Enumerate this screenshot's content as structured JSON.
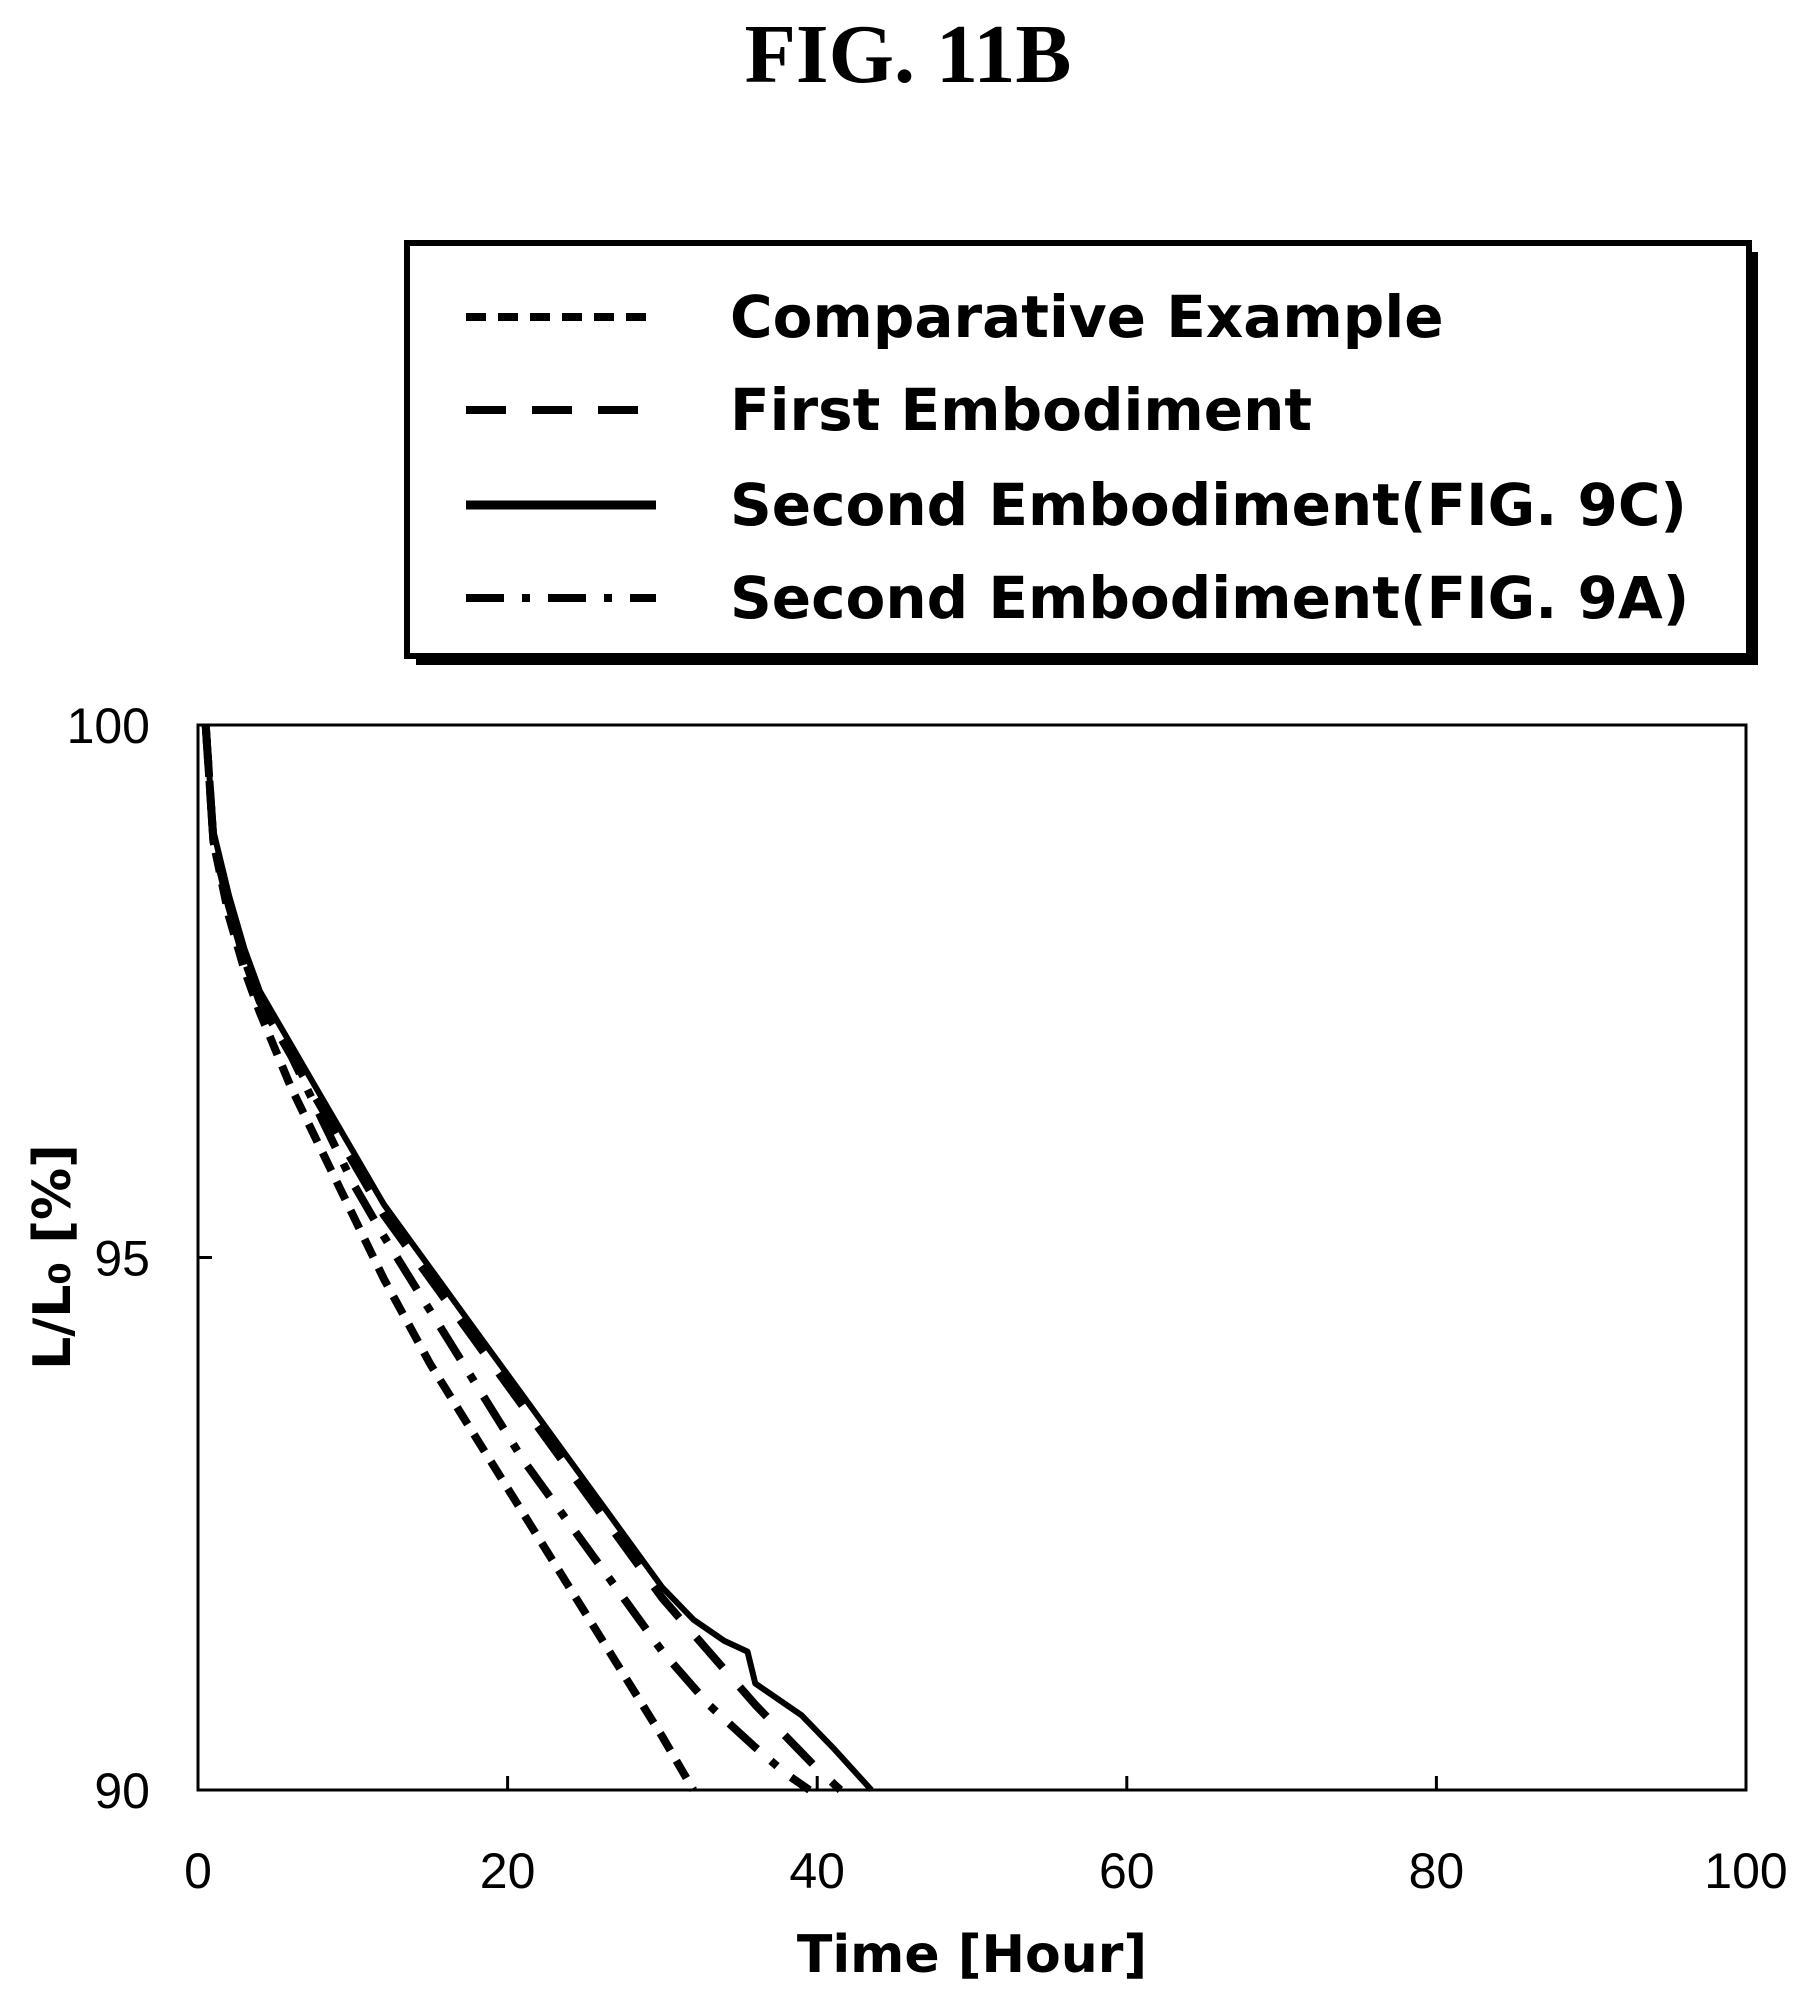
{
  "figure_title": "FIG. 11B",
  "chart_data": {
    "type": "line",
    "title": "FIG. 11B",
    "xlabel": "Time [Hour]",
    "ylabel": "L/L₀ [%]",
    "xlim": [
      0,
      100
    ],
    "ylim": [
      90,
      100
    ],
    "xticks": [
      "0",
      "20",
      "40",
      "60",
      "80",
      "100"
    ],
    "yticks": [
      "90",
      "95",
      "100"
    ],
    "grid": false,
    "legend_position": "top-right, above plot",
    "series": [
      {
        "name": "Comparative Example",
        "dash": "short-dash",
        "x": [
          0.5,
          1,
          2,
          3,
          4,
          6,
          8,
          10,
          12,
          15,
          18,
          21,
          24,
          27,
          30,
          32
        ],
        "y": [
          100,
          98.9,
          98.2,
          97.7,
          97.3,
          96.6,
          96.0,
          95.4,
          94.8,
          94.0,
          93.3,
          92.6,
          91.9,
          91.2,
          90.5,
          90.0
        ]
      },
      {
        "name": "First Embodiment",
        "dash": "long-dash",
        "x": [
          0.5,
          1,
          2,
          3,
          4,
          6,
          8,
          10,
          12,
          15,
          18,
          21,
          24,
          27,
          30,
          33,
          36,
          38,
          40,
          41.5
        ],
        "y": [
          100,
          98.9,
          98.3,
          97.8,
          97.4,
          96.9,
          96.4,
          95.9,
          95.4,
          94.8,
          94.2,
          93.6,
          93.0,
          92.4,
          91.8,
          91.3,
          90.8,
          90.5,
          90.2,
          90.0
        ]
      },
      {
        "name": "Second Embodiment(FIG. 9C)",
        "dash": "solid",
        "x": [
          0.5,
          1,
          2,
          3,
          4,
          6,
          8,
          10,
          12,
          15,
          18,
          21,
          24,
          27,
          30,
          32,
          34,
          35.5,
          36,
          37,
          39,
          41,
          43.5
        ],
        "y": [
          100,
          99.0,
          98.4,
          97.9,
          97.5,
          97.0,
          96.5,
          96.0,
          95.5,
          94.9,
          94.3,
          93.7,
          93.1,
          92.5,
          91.9,
          91.6,
          91.4,
          91.3,
          91.0,
          90.9,
          90.7,
          90.4,
          90.0
        ]
      },
      {
        "name": "Second Embodiment(FIG. 9A)",
        "dash": "dash-dot",
        "x": [
          0.5,
          1,
          2,
          3,
          4,
          6,
          8,
          10,
          12,
          15,
          18,
          21,
          24,
          27,
          30,
          33,
          36,
          38,
          39.5
        ],
        "y": [
          100,
          98.9,
          98.3,
          97.8,
          97.4,
          96.9,
          96.3,
          95.7,
          95.2,
          94.5,
          93.8,
          93.1,
          92.5,
          91.9,
          91.3,
          90.8,
          90.4,
          90.15,
          90.0
        ]
      }
    ]
  }
}
